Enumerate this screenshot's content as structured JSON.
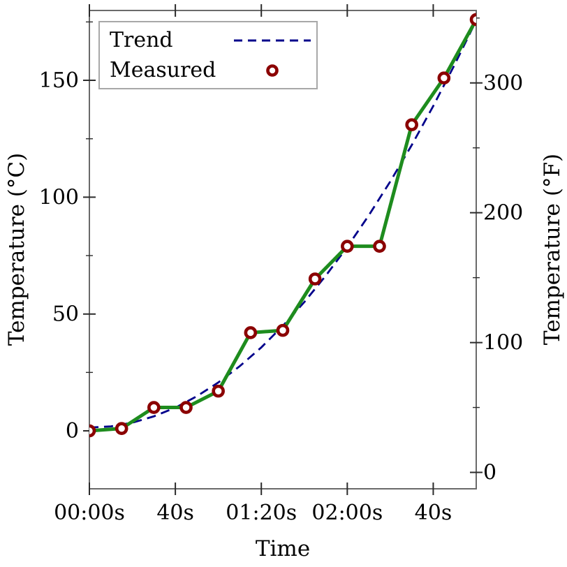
{
  "figure": {
    "xlabel": "Time",
    "ylabel_left": "Temperature (°C)",
    "ylabel_right": "Temperature (°F)",
    "background": "#ffffff"
  },
  "legend": {
    "position": "upper left",
    "items": [
      {
        "label": "Trend",
        "sample": "dashed-line-icon",
        "color": "#00008b"
      },
      {
        "label": "Measured",
        "sample": "open-circle-marker-icon",
        "color": "#8b0000"
      }
    ]
  },
  "colors": {
    "measured_line": "#1e8c1e",
    "measured_marker": "#8b0000",
    "marker_fill": "#ffffff",
    "trend_line": "#00008b",
    "spine": "#6a6a6a",
    "tick": "#2b2b2b",
    "text": "#000000"
  },
  "chart_data": {
    "type": "line",
    "title": "",
    "xlabel": "Time",
    "ylabel": "Temperature (°C)",
    "ylabel_right": "Temperature (°F)",
    "grid": false,
    "legend_position": "upper left",
    "xlim_seconds": [
      0,
      180
    ],
    "ylim_c": [
      -24.8,
      179.9
    ],
    "x_ticks": {
      "positions_seconds": [
        0,
        40,
        80,
        120,
        160
      ],
      "labels": [
        "00:00s",
        "40s",
        "01:20s",
        "02:00s",
        "40s"
      ]
    },
    "y_left_ticks_c": {
      "major": [
        0,
        50,
        100,
        150
      ],
      "minor": [
        25,
        75,
        125,
        175
      ]
    },
    "y_right_ticks_f": {
      "major": [
        0,
        100,
        200,
        300
      ],
      "minor": [
        50,
        150,
        250,
        350
      ]
    },
    "series": [
      {
        "name": "Measured",
        "style": "solid-line-open-circles",
        "x_seconds": [
          0,
          15,
          30,
          45,
          60,
          75,
          90,
          105,
          120,
          135,
          150,
          165,
          180
        ],
        "values_c": [
          0,
          1,
          10,
          10,
          17,
          42,
          43,
          65,
          79,
          79,
          131,
          151,
          176
        ]
      },
      {
        "name": "Trend",
        "style": "dashed-line",
        "points_t_c": [
          [
            0,
            1.4
          ],
          [
            10,
            1.9
          ],
          [
            20,
            3.5
          ],
          [
            30,
            6.2
          ],
          [
            40,
            9.9
          ],
          [
            50,
            14.8
          ],
          [
            60,
            20.7
          ],
          [
            70,
            27.7
          ],
          [
            80,
            35.7
          ],
          [
            90,
            44.9
          ],
          [
            100,
            55.1
          ],
          [
            110,
            66.4
          ],
          [
            120,
            78.7
          ],
          [
            130,
            92.2
          ],
          [
            140,
            106.7
          ],
          [
            150,
            122.3
          ],
          [
            160,
            139.0
          ],
          [
            170,
            156.8
          ],
          [
            180,
            175.6
          ]
        ]
      }
    ]
  }
}
